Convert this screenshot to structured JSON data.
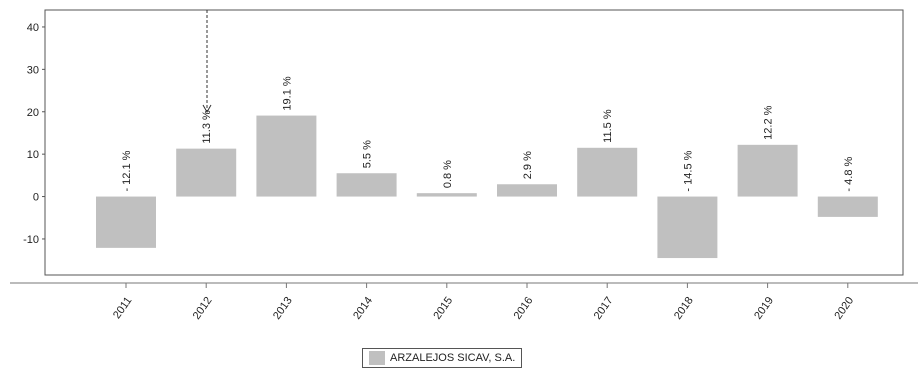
{
  "chart_data": {
    "type": "bar",
    "categories": [
      "2011",
      "2012",
      "2013",
      "2014",
      "2015",
      "2016",
      "2017",
      "2018",
      "2019",
      "2020"
    ],
    "series": [
      {
        "name": "ARZALEJOS SICAV, S.A.",
        "values": [
          -12.1,
          11.3,
          19.1,
          5.5,
          0.8,
          2.9,
          11.5,
          -14.5,
          12.2,
          -4.8
        ],
        "labels": [
          "- 12.1 %",
          "11.3 %",
          "19.1 %",
          "5.5 %",
          "0.8 %",
          "2.9 %",
          "11.5 %",
          "- 14.5 %",
          "12.2 %",
          "- 4.8 %"
        ],
        "color": "#c0c0c0"
      }
    ],
    "y_ticks": [
      "40",
      "30",
      "20",
      "10",
      "0",
      "-10"
    ],
    "ylim": [
      -18.5,
      44
    ],
    "grid": false,
    "legend_position": "bottom-center"
  },
  "legend": {
    "label": "ARZALEJOS SICAV, S.A."
  }
}
